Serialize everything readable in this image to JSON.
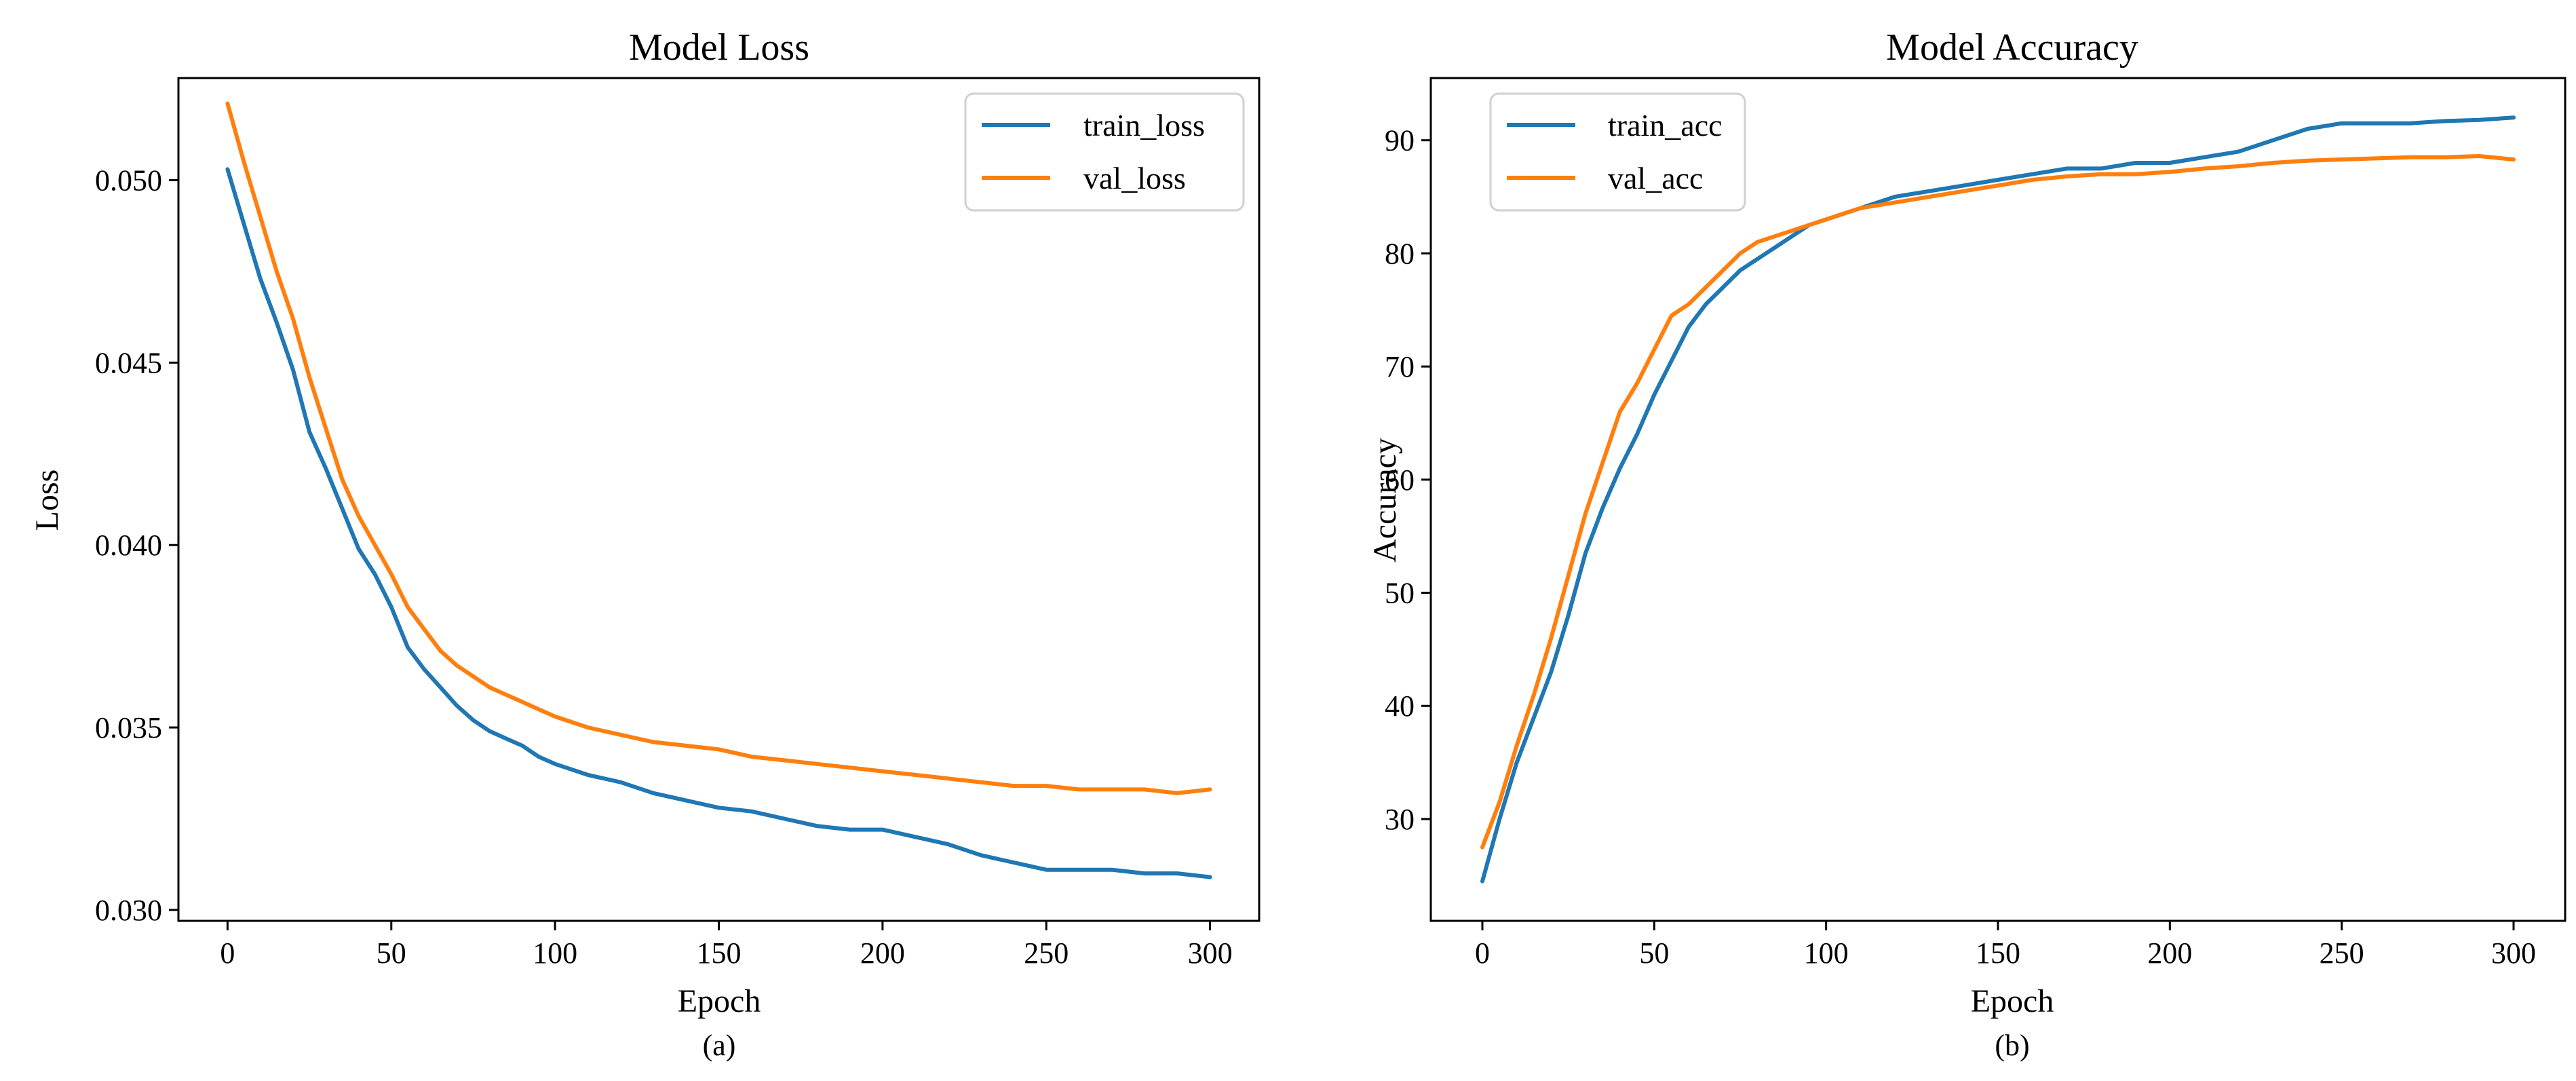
{
  "colors": {
    "blue": "#1f77b4",
    "orange": "#ff7f0e",
    "axis": "#000000",
    "background": "#ffffff",
    "legend_edge": "#d0d0d0"
  },
  "chart_data": [
    {
      "id": "loss",
      "type": "line",
      "title": "Model Loss",
      "xlabel": "Epoch",
      "ylabel": "Loss",
      "caption": "(a)",
      "xlim": [
        -15,
        315
      ],
      "ylim": [
        0.0297,
        0.0528
      ],
      "xticks": [
        0,
        50,
        100,
        150,
        200,
        250,
        300
      ],
      "xtick_labels": [
        "0",
        "50",
        "100",
        "150",
        "200",
        "250",
        "300"
      ],
      "yticks": [
        0.03,
        0.035,
        0.04,
        0.045,
        0.05
      ],
      "ytick_labels": [
        "0.030",
        "0.035",
        "0.040",
        "0.045",
        "0.050"
      ],
      "legend": {
        "position": "upper right"
      },
      "series": [
        {
          "name": "train_loss",
          "color": "#1f77b4",
          "x": [
            0,
            5,
            10,
            15,
            20,
            25,
            30,
            35,
            40,
            45,
            50,
            55,
            60,
            65,
            70,
            75,
            80,
            85,
            90,
            95,
            100,
            110,
            120,
            130,
            140,
            150,
            160,
            170,
            180,
            190,
            200,
            210,
            220,
            230,
            240,
            250,
            260,
            270,
            280,
            290,
            300
          ],
          "y": [
            0.0503,
            0.0488,
            0.0473,
            0.0461,
            0.0448,
            0.0431,
            0.0421,
            0.041,
            0.0399,
            0.0392,
            0.0383,
            0.0372,
            0.0366,
            0.0361,
            0.0356,
            0.0352,
            0.0349,
            0.0347,
            0.0345,
            0.0342,
            0.034,
            0.0337,
            0.0335,
            0.0332,
            0.033,
            0.0328,
            0.0327,
            0.0325,
            0.0323,
            0.0322,
            0.0322,
            0.032,
            0.0318,
            0.0315,
            0.0313,
            0.0311,
            0.0311,
            0.0311,
            0.031,
            0.031,
            0.0309
          ]
        },
        {
          "name": "val_loss",
          "color": "#ff7f0e",
          "x": [
            0,
            5,
            10,
            15,
            20,
            25,
            30,
            35,
            40,
            45,
            50,
            55,
            60,
            65,
            70,
            75,
            80,
            85,
            90,
            95,
            100,
            110,
            120,
            130,
            140,
            150,
            160,
            170,
            180,
            190,
            200,
            210,
            220,
            230,
            240,
            250,
            260,
            270,
            280,
            290,
            300
          ],
          "y": [
            0.0521,
            0.0505,
            0.049,
            0.0475,
            0.0462,
            0.0446,
            0.0432,
            0.0418,
            0.0408,
            0.04,
            0.0392,
            0.0383,
            0.0377,
            0.0371,
            0.0367,
            0.0364,
            0.0361,
            0.0359,
            0.0357,
            0.0355,
            0.0353,
            0.035,
            0.0348,
            0.0346,
            0.0345,
            0.0344,
            0.0342,
            0.0341,
            0.034,
            0.0339,
            0.0338,
            0.0337,
            0.0336,
            0.0335,
            0.0334,
            0.0334,
            0.0333,
            0.0333,
            0.0333,
            0.0332,
            0.0333
          ]
        }
      ]
    },
    {
      "id": "accuracy",
      "type": "line",
      "title": "Model Accuracy",
      "xlabel": "Epoch",
      "ylabel": "Accuracy",
      "caption": "(b)",
      "xlim": [
        -15,
        315
      ],
      "ylim": [
        21.0,
        95.5
      ],
      "xticks": [
        0,
        50,
        100,
        150,
        200,
        250,
        300
      ],
      "xtick_labels": [
        "0",
        "50",
        "100",
        "150",
        "200",
        "250",
        "300"
      ],
      "yticks": [
        30,
        40,
        50,
        60,
        70,
        80,
        90
      ],
      "ytick_labels": [
        "30",
        "40",
        "50",
        "60",
        "70",
        "80",
        "90"
      ],
      "legend": {
        "position": "upper left"
      },
      "series": [
        {
          "name": "train_acc",
          "color": "#1f77b4",
          "x": [
            0,
            5,
            10,
            15,
            20,
            25,
            30,
            35,
            40,
            45,
            50,
            55,
            60,
            65,
            70,
            75,
            80,
            85,
            90,
            95,
            100,
            110,
            120,
            130,
            140,
            150,
            160,
            170,
            180,
            190,
            200,
            210,
            220,
            230,
            240,
            250,
            260,
            270,
            280,
            290,
            300
          ],
          "y": [
            24.5,
            30.0,
            35.0,
            39.0,
            43.0,
            48.0,
            53.5,
            57.5,
            61.0,
            64.0,
            67.5,
            70.5,
            73.5,
            75.5,
            77.0,
            78.5,
            79.5,
            80.5,
            81.5,
            82.5,
            83.0,
            84.0,
            85.0,
            85.5,
            86.0,
            86.5,
            87.0,
            87.5,
            87.5,
            88.0,
            88.0,
            88.5,
            89.0,
            90.0,
            91.0,
            91.5,
            91.5,
            91.5,
            91.7,
            91.8,
            92.0
          ]
        },
        {
          "name": "val_acc",
          "color": "#ff7f0e",
          "x": [
            0,
            5,
            10,
            15,
            20,
            25,
            30,
            35,
            40,
            45,
            50,
            55,
            60,
            65,
            70,
            75,
            80,
            85,
            90,
            95,
            100,
            110,
            120,
            130,
            140,
            150,
            160,
            170,
            180,
            190,
            200,
            210,
            220,
            230,
            240,
            250,
            260,
            270,
            280,
            290,
            300
          ],
          "y": [
            27.5,
            31.5,
            36.5,
            41.0,
            46.0,
            51.5,
            57.0,
            61.5,
            66.0,
            68.5,
            71.5,
            74.5,
            75.5,
            77.0,
            78.5,
            80.0,
            81.0,
            81.5,
            82.0,
            82.5,
            83.0,
            84.0,
            84.5,
            85.0,
            85.5,
            86.0,
            86.5,
            86.8,
            87.0,
            87.0,
            87.2,
            87.5,
            87.7,
            88.0,
            88.2,
            88.3,
            88.4,
            88.5,
            88.5,
            88.6,
            88.3
          ]
        }
      ]
    }
  ]
}
